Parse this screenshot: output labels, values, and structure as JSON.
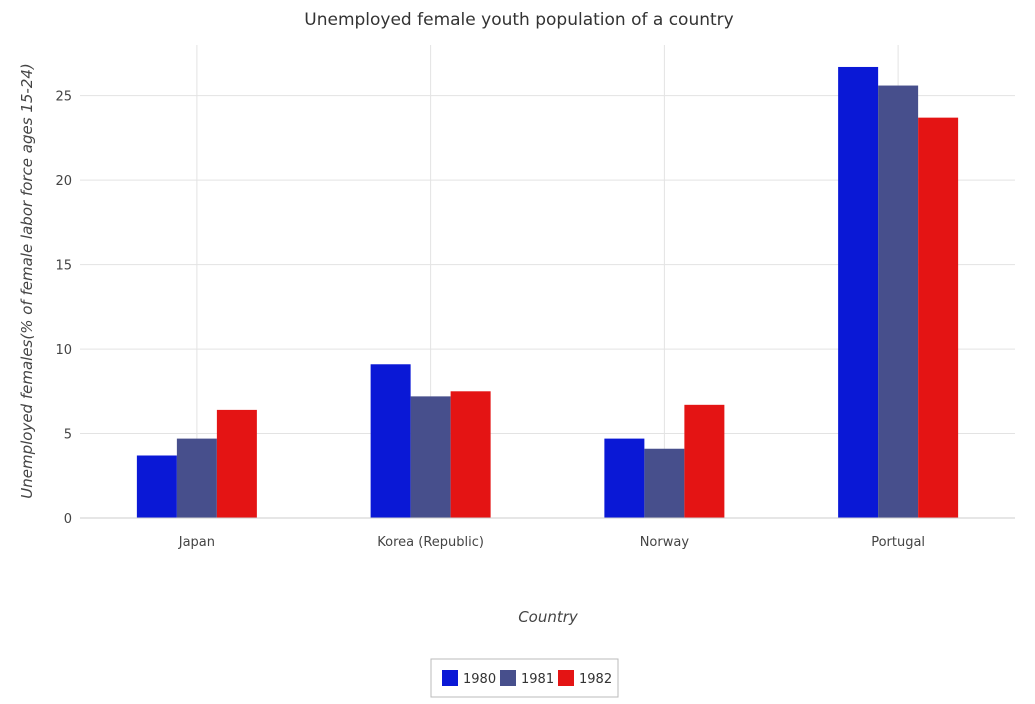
{
  "chart_data": {
    "type": "bar",
    "title": "Unemployed female youth population of a country",
    "xlabel": "Country",
    "ylabel": "Unemployed females(% of female labor force ages 15-24)",
    "categories": [
      "Japan",
      "Korea (Republic)",
      "Norway",
      "Portugal"
    ],
    "series": [
      {
        "name": "1980",
        "color": "#0a18d6",
        "values": [
          3.7,
          9.1,
          4.7,
          26.7
        ]
      },
      {
        "name": "1981",
        "color": "#474f8c",
        "values": [
          4.7,
          7.2,
          4.1,
          25.6
        ]
      },
      {
        "name": "1982",
        "color": "#e41414",
        "values": [
          6.4,
          7.5,
          6.7,
          23.7
        ]
      }
    ],
    "ylim": [
      0,
      28
    ],
    "yticks": [
      0,
      5,
      10,
      15,
      20,
      25
    ],
    "grid": true,
    "legend_position": "bottom-center"
  }
}
